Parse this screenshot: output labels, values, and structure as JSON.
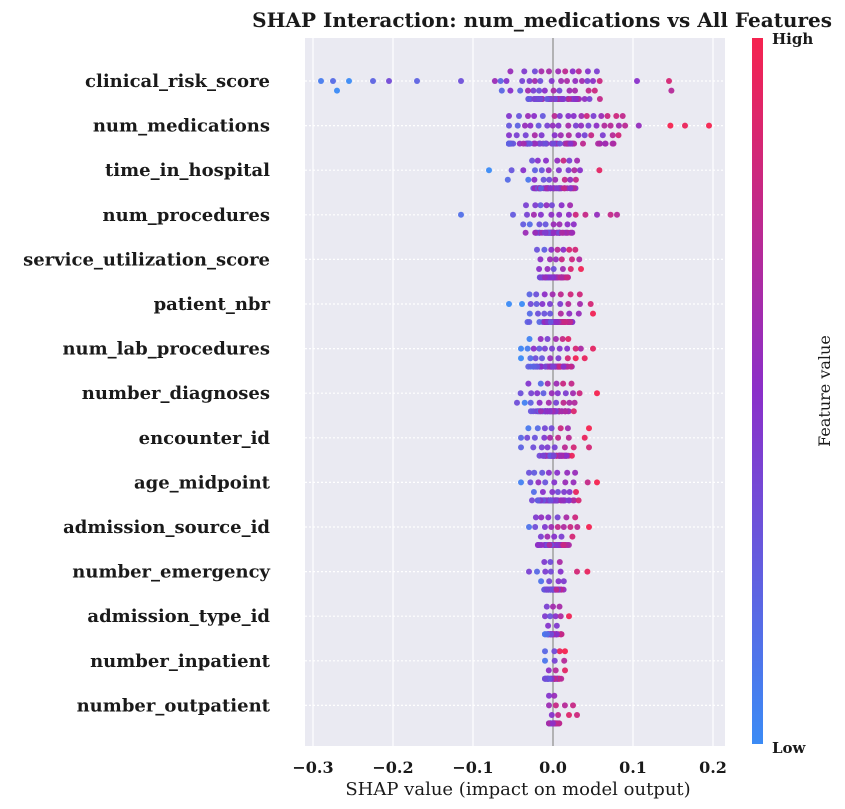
{
  "chart_data": {
    "type": "scatter",
    "subtype": "shap-beeswarm",
    "title": "SHAP Interaction: num_medications vs All Features",
    "xlabel": "SHAP value (impact on model output)",
    "ylabel": "",
    "xlim": [
      -0.31,
      0.215
    ],
    "xticks": [
      -0.3,
      -0.2,
      -0.1,
      0.0,
      0.1,
      0.2
    ],
    "xtick_labels": [
      "−0.3",
      "−0.2",
      "−0.1",
      "0.0",
      "0.1",
      "0.2"
    ],
    "grid": true,
    "colorbar": {
      "label": "Feature value",
      "high_label": "High",
      "low_label": "Low",
      "low_color": "#3b8bf5",
      "mid_color": "#8b2fc9",
      "high_color": "#f5234f"
    },
    "features": [
      {
        "name": "clinical_risk_score",
        "range": [
          -0.29,
          0.148
        ],
        "spread": 0.03,
        "count": 95,
        "outliers": [
          -0.29,
          -0.275,
          -0.27,
          -0.255,
          -0.225,
          -0.205,
          -0.17,
          -0.115,
          0.05,
          0.105,
          0.145,
          0.148
        ]
      },
      {
        "name": "num_medications",
        "range": [
          -0.055,
          0.195
        ],
        "spread": 0.045,
        "count": 110,
        "outliers": [
          0.165,
          0.195,
          -0.055
        ]
      },
      {
        "name": "time_in_hospital",
        "range": [
          -0.08,
          0.06
        ],
        "spread": 0.02,
        "count": 80,
        "outliers": [
          -0.08,
          0.058
        ]
      },
      {
        "name": "num_procedures",
        "range": [
          -0.115,
          0.08
        ],
        "spread": 0.015,
        "count": 80,
        "outliers": [
          -0.115,
          -0.05,
          0.055,
          0.072,
          0.08
        ]
      },
      {
        "name": "service_utilization_score",
        "range": [
          -0.02,
          0.04
        ],
        "spread": 0.012,
        "count": 70,
        "outliers": [
          0.035
        ]
      },
      {
        "name": "patient_nbr",
        "range": [
          -0.055,
          0.05
        ],
        "spread": 0.018,
        "count": 80,
        "outliers": [
          -0.055,
          0.05
        ]
      },
      {
        "name": "num_lab_procedures",
        "range": [
          -0.04,
          0.05
        ],
        "spread": 0.018,
        "count": 80,
        "outliers": [
          -0.04,
          0.05
        ]
      },
      {
        "name": "number_diagnoses",
        "range": [
          -0.045,
          0.055
        ],
        "spread": 0.015,
        "count": 80,
        "outliers": [
          -0.045,
          0.055
        ]
      },
      {
        "name": "encounter_id",
        "range": [
          -0.04,
          0.045
        ],
        "spread": 0.015,
        "count": 80,
        "outliers": [
          -0.04,
          0.045
        ]
      },
      {
        "name": "age_midpoint",
        "range": [
          -0.04,
          0.055
        ],
        "spread": 0.015,
        "count": 80,
        "outliers": [
          -0.04,
          0.055
        ]
      },
      {
        "name": "admission_source_id",
        "range": [
          -0.03,
          0.045
        ],
        "spread": 0.012,
        "count": 70,
        "outliers": [
          -0.03,
          0.045
        ]
      },
      {
        "name": "number_emergency",
        "range": [
          -0.03,
          0.043
        ],
        "spread": 0.006,
        "count": 60,
        "outliers": [
          -0.03,
          -0.02,
          0.03,
          0.043
        ]
      },
      {
        "name": "admission_type_id",
        "range": [
          -0.01,
          0.02
        ],
        "spread": 0.006,
        "count": 50,
        "outliers": [
          0.02
        ]
      },
      {
        "name": "number_inpatient",
        "range": [
          -0.01,
          0.015
        ],
        "spread": 0.006,
        "count": 45,
        "outliers": [
          0.015
        ]
      },
      {
        "name": "number_outpatient",
        "range": [
          -0.005,
          0.03
        ],
        "spread": 0.004,
        "count": 40,
        "outliers": [
          0.02,
          0.025,
          0.03
        ]
      }
    ]
  }
}
